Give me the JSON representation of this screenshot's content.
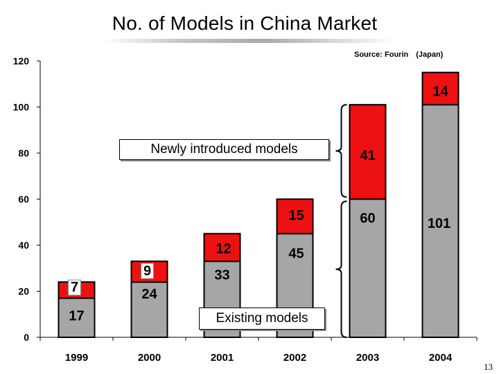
{
  "title": "No. of Models in China Market",
  "source": "Source: Fourin　(Japan)",
  "page_number": "13",
  "annotations": {
    "newly_introduced": "Newly introduced models",
    "existing": "Existing models"
  },
  "colors": {
    "existing": "#a6a6a6",
    "new": "#ee1111",
    "axis": "#000000"
  },
  "chart_data": {
    "type": "bar",
    "stacked": true,
    "title": "No. of Models in China Market",
    "xlabel": "",
    "ylabel": "",
    "ylim": [
      0,
      120
    ],
    "yticks": [
      0,
      20,
      40,
      60,
      80,
      100,
      120
    ],
    "categories": [
      "1999",
      "2000",
      "2001",
      "2002",
      "2003",
      "2004"
    ],
    "series": [
      {
        "name": "Existing models",
        "values": [
          17,
          24,
          33,
          45,
          60,
          101
        ]
      },
      {
        "name": "Newly introduced models",
        "values": [
          7,
          9,
          12,
          15,
          41,
          14
        ]
      }
    ]
  }
}
